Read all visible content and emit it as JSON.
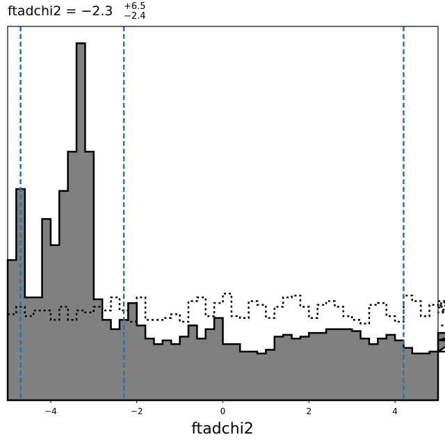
{
  "chart_data": {
    "type": "histogram",
    "title": {
      "main": "ftadchi2 = −2.3",
      "upper": "+6.5",
      "lower": "−2.4"
    },
    "xlabel": "ftadchi2",
    "xlim": [
      -5,
      5
    ],
    "ylim": [
      0,
      1.0
    ],
    "xticks": [
      -4,
      -2,
      0,
      2,
      4
    ],
    "xtick_labels": [
      "−4",
      "−2",
      "0",
      "2",
      "4"
    ],
    "yticks_visible": false,
    "grid": false,
    "bin_width": 0.2,
    "bin_edges_start": -5,
    "colors": {
      "fill": "#808080",
      "edge": "#000000",
      "prior": "#000000",
      "quantile": "#1f77b4"
    },
    "series": [
      {
        "style": "filled-step",
        "values": [
          0.375,
          0.565,
          0.275,
          0.275,
          0.485,
          0.415,
          0.56,
          0.665,
          0.955,
          0.665,
          0.27,
          0.215,
          0.19,
          0.215,
          0.26,
          0.2,
          0.165,
          0.15,
          0.16,
          0.15,
          0.17,
          0.2,
          0.165,
          0.19,
          0.22,
          0.15,
          0.15,
          0.13,
          0.13,
          0.125,
          0.135,
          0.17,
          0.175,
          0.165,
          0.17,
          0.18,
          0.18,
          0.19,
          0.19,
          0.19,
          0.185,
          0.165,
          0.15,
          0.165,
          0.175,
          0.16,
          0.14,
          0.125,
          0.125,
          0.13,
          0.13,
          0.13,
          0.16,
          0.18
        ]
      },
      {
        "style": "dotted-step",
        "values": [
          0.23,
          0.25,
          0.225,
          0.24,
          0.24,
          0.215,
          0.25,
          0.215,
          0.24,
          0.235,
          0.25,
          0.24,
          0.275,
          0.24,
          0.21,
          0.275,
          0.215,
          0.215,
          0.22,
          0.23,
          0.21,
          0.265,
          0.275,
          0.225,
          0.26,
          0.285,
          0.225,
          0.22,
          0.265,
          0.255,
          0.22,
          0.25,
          0.275,
          0.28,
          0.25,
          0.22,
          0.255,
          0.265,
          0.25,
          0.225,
          0.215,
          0.205,
          0.255,
          0.26,
          0.225,
          0.21,
          0.28,
          0.265,
          0.225,
          0.255,
          0.25,
          0.265,
          0.235,
          0.25,
          0.2
        ]
      }
    ],
    "quantiles": [
      -4.7,
      -2.3,
      4.2
    ]
  }
}
